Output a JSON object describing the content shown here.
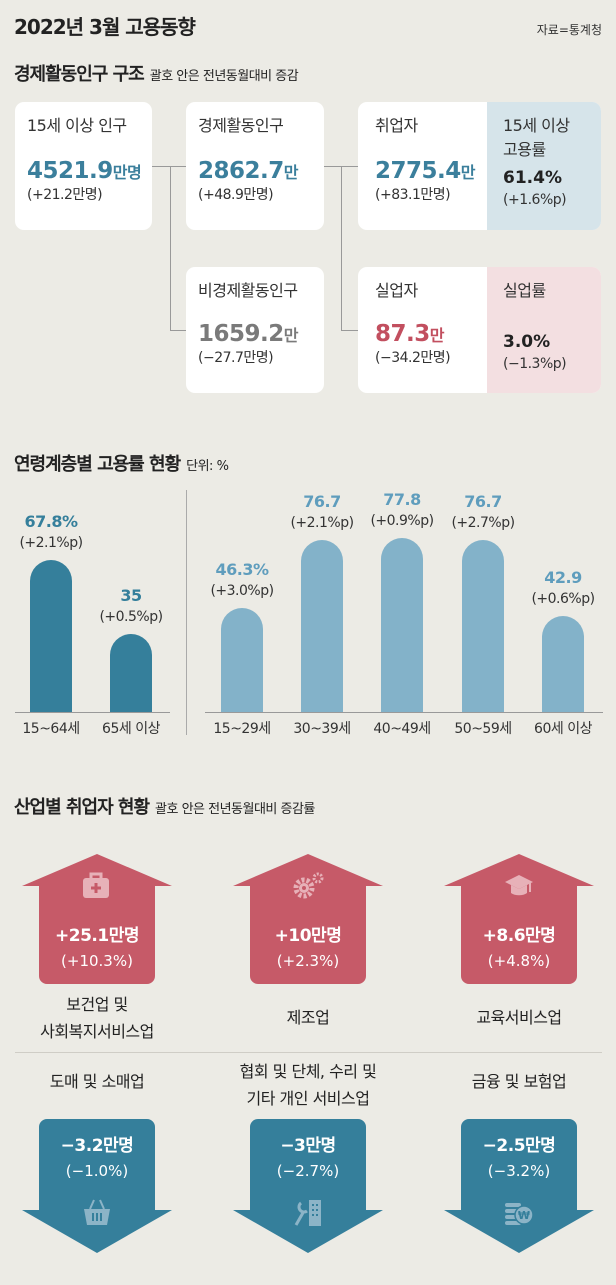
{
  "header": {
    "title": "2022년 3월 고용동향",
    "source": "자료=통계청"
  },
  "structure": {
    "title": "경제활동인구 구조",
    "note": "괄호 안은 전년동월대비 증감",
    "pop15": {
      "label": "15세 이상 인구",
      "value": "4521.9",
      "unit": "만명",
      "change": "(+21.2만명)"
    },
    "active": {
      "label": "경제활동인구",
      "value": "2862.7",
      "unit": "만",
      "change": "(+48.9만명)"
    },
    "inactive": {
      "label": "비경제활동인구",
      "value": "1659.2",
      "unit": "만",
      "change": "(−27.7만명)"
    },
    "employed": {
      "label": "취업자",
      "value": "2775.4",
      "unit": "만",
      "change": "(+83.1만명)"
    },
    "employment_rate": {
      "label1": "15세 이상",
      "label2": "고용률",
      "value": "61.4%",
      "change": "(+1.6%p)"
    },
    "unemployed": {
      "label": "실업자",
      "value": "87.3",
      "unit": "만",
      "change": "(−34.2만명)"
    },
    "unemployment_rate": {
      "label": "실업률",
      "value": "3.0%",
      "change": "(−1.3%p)"
    }
  },
  "chart_data": {
    "type": "bar",
    "title": "연령계층별 고용률 현황",
    "unit_note": "단위: %",
    "groups": [
      {
        "categories": [
          "15~64세",
          "65세 이상"
        ],
        "values": [
          67.8,
          35
        ],
        "value_labels": [
          "67.8%",
          "35"
        ],
        "changes": [
          "(+2.1%p)",
          "(+0.5%p)"
        ],
        "color": "#357f9b"
      },
      {
        "categories": [
          "15~29세",
          "30~39세",
          "40~49세",
          "50~59세",
          "60세 이상"
        ],
        "values": [
          46.3,
          76.7,
          77.8,
          76.7,
          42.9
        ],
        "value_labels": [
          "46.3%",
          "76.7",
          "77.8",
          "76.7",
          "42.9"
        ],
        "changes": [
          "(+3.0%p)",
          "(+2.1%p)",
          "(+0.9%p)",
          "(+2.7%p)",
          "(+0.6%p)"
        ],
        "color": "#83b2c9"
      }
    ]
  },
  "industry": {
    "title": "산업별 취업자 현황",
    "note": "괄호 안은 전년동월대비 증감률",
    "up": [
      {
        "icon": "medical-kit-icon",
        "value": "+25.1만명",
        "change": "(+10.3%)",
        "label1": "보건업 및",
        "label2": "사회복지서비스업"
      },
      {
        "icon": "gears-icon",
        "value": "+10만명",
        "change": "(+2.3%)",
        "label1": "제조업",
        "label2": ""
      },
      {
        "icon": "graduation-cap-icon",
        "value": "+8.6만명",
        "change": "(+4.8%)",
        "label1": "교육서비스업",
        "label2": ""
      }
    ],
    "down": [
      {
        "icon": "basket-icon",
        "value": "−3.2만명",
        "change": "(−1.0%)",
        "label1": "도매 및 소매업",
        "label2": ""
      },
      {
        "icon": "wrench-building-icon",
        "value": "−3만명",
        "change": "(−2.7%)",
        "label1": "협회 및 단체, 수리 및",
        "label2": "기타 개인 서비스업"
      },
      {
        "icon": "coins-won-icon",
        "value": "−2.5만명",
        "change": "(−3.2%)",
        "label1": "금융 및 보험업",
        "label2": ""
      }
    ],
    "colors": {
      "up": "#c65a68",
      "down": "#357f9b"
    }
  }
}
